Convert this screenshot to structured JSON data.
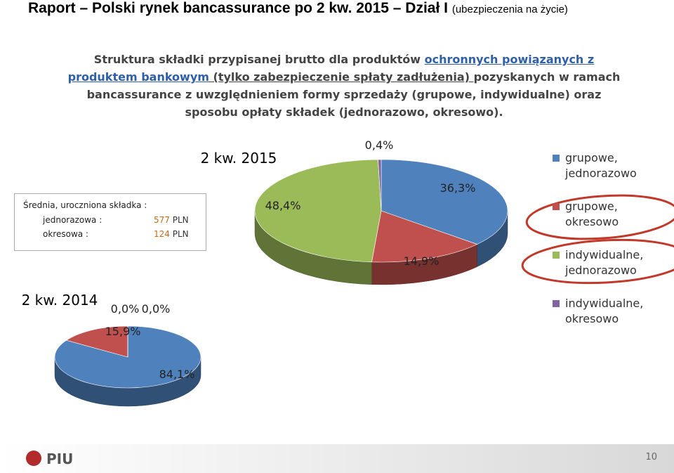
{
  "slide": {
    "title": "Raport – Polski rynek bancassurance po 2 kw. 2015 – Dział I",
    "title_note": "(ubezpieczenia na życie)",
    "description": [
      "Struktura składki przypisanej brutto dla produktów ",
      "ochronnych powiązanych z produktem bankowym",
      " (tylko zabezpieczenie spłaty zadłużenia) ",
      "pozyskanych w ramach bancassurance z uwzględnieniem formy sprzedaży (grupowe, indywidualne) oraz sposobu opłaty składek (jednorazowo, okresowo)."
    ],
    "info_box": {
      "title": "Średnia, uroczniona składka :",
      "rows": [
        [
          "jednorazowa :",
          "577",
          "PLN"
        ],
        [
          "okresowa :",
          "124",
          "PLN"
        ]
      ]
    },
    "logo": "PIU",
    "page_number": "10"
  },
  "chart_data": [
    {
      "type": "pie",
      "title": "2 kw. 2015",
      "categories": [
        "grupowe, jednorazowo",
        "grupowe, okresowo",
        "indywidualne, jednorazowo",
        "indywidualne, okresowo"
      ],
      "values": [
        36.3,
        14.9,
        48.4,
        0.4
      ],
      "value_labels": [
        "36,3%",
        "14,9%",
        "48,4%",
        "0,4%"
      ],
      "colors": [
        "#4f81bd",
        "#c0504d",
        "#9bbb59",
        "#8064a2"
      ],
      "legend": "right"
    },
    {
      "type": "pie",
      "title": "2 kw. 2014",
      "values": [
        84.1,
        15.9,
        0.0,
        0.0
      ],
      "value_labels": [
        "84,1%",
        "15,9%",
        "0,0%",
        "0,0%"
      ],
      "colors": [
        "#4f81bd",
        "#c0504d",
        "#9bbb59",
        "#8064a2"
      ]
    }
  ]
}
